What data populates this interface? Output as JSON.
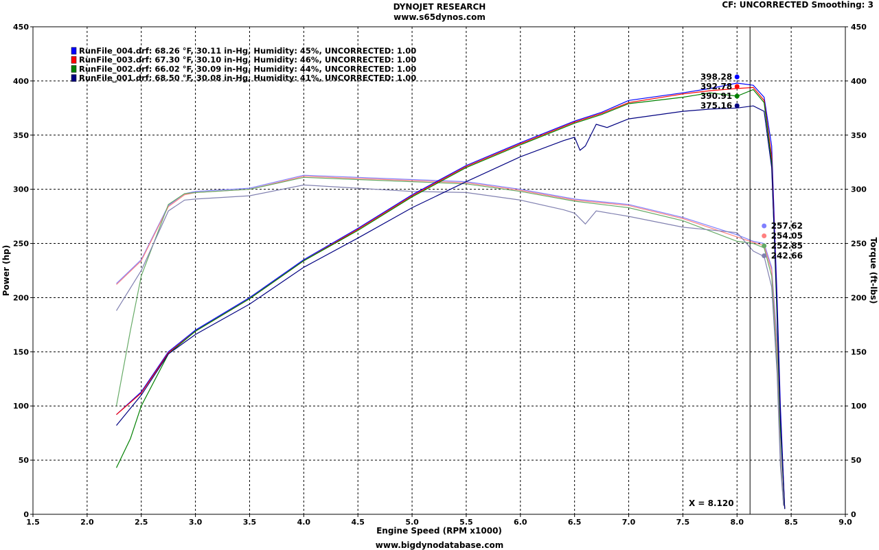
{
  "header": {
    "title": "DYNOJET RESEARCH",
    "subtitle": "www.s65dynos.com",
    "cf_info": "CF: UNCORRECTED  Smoothing: 3"
  },
  "footer": {
    "text": "www.bigdynodatabase.com"
  },
  "cursor_label": "X = 8.120",
  "chart_data": {
    "type": "line",
    "xlabel": "Engine Speed (RPM x1000)",
    "ylabel": "Power (hp)",
    "y2label": "Torque (ft-lbs)",
    "xlim": [
      1.5,
      9.0
    ],
    "ylim": [
      0,
      450
    ],
    "y2lim": [
      0,
      450
    ],
    "xticks": [
      1.5,
      2.0,
      2.5,
      3.0,
      3.5,
      4.0,
      4.5,
      5.0,
      5.5,
      6.0,
      6.5,
      7.0,
      7.5,
      8.0,
      8.5,
      9.0
    ],
    "yticks": [
      0,
      50,
      100,
      150,
      200,
      250,
      300,
      350,
      400,
      450
    ],
    "grid": true,
    "legend_position": "top-left",
    "cursor_x": 8.12,
    "series": [
      {
        "name": "RunFile_004.drf: 68.26 °F, 30.11 in-Hg, Humidity: 45%, UNCORRECTED: 1.00",
        "color": "#0000ff",
        "torque_color": "#8080ff",
        "power_marker": {
          "x": 8.0,
          "label": "398.28"
        },
        "torque_marker": {
          "x": 8.25,
          "label": "257.62"
        },
        "power": [
          [
            2.27,
            92
          ],
          [
            2.5,
            113
          ],
          [
            2.75,
            150
          ],
          [
            3.0,
            170
          ],
          [
            3.5,
            200
          ],
          [
            4.0,
            235
          ],
          [
            4.5,
            264
          ],
          [
            5.0,
            295
          ],
          [
            5.5,
            322
          ],
          [
            6.0,
            343
          ],
          [
            6.5,
            363
          ],
          [
            6.75,
            371
          ],
          [
            7.0,
            382
          ],
          [
            7.5,
            389
          ],
          [
            7.75,
            393
          ],
          [
            8.0,
            398
          ],
          [
            8.15,
            396
          ],
          [
            8.25,
            385
          ],
          [
            8.32,
            340
          ],
          [
            8.37,
            200
          ],
          [
            8.4,
            100
          ],
          [
            8.44,
            5
          ]
        ],
        "torque": [
          [
            2.27,
            213
          ],
          [
            2.5,
            235
          ],
          [
            2.75,
            285
          ],
          [
            2.9,
            296
          ],
          [
            3.0,
            298
          ],
          [
            3.5,
            301
          ],
          [
            4.0,
            313
          ],
          [
            4.5,
            311
          ],
          [
            5.0,
            309
          ],
          [
            5.5,
            307
          ],
          [
            6.0,
            300
          ],
          [
            6.5,
            291
          ],
          [
            7.0,
            286
          ],
          [
            7.5,
            274
          ],
          [
            8.0,
            258
          ],
          [
            8.15,
            252
          ],
          [
            8.25,
            250
          ],
          [
            8.32,
            228
          ],
          [
            8.37,
            160
          ],
          [
            8.4,
            60
          ],
          [
            8.43,
            8
          ]
        ]
      },
      {
        "name": "RunFile_003.drf: 67.30 °F, 30.10 in-Hg, Humidity: 46%, UNCORRECTED: 1.00",
        "color": "#ff0000",
        "torque_color": "#ff8080",
        "power_marker": {
          "x": 8.0,
          "label": "392.78"
        },
        "torque_marker": {
          "x": 8.25,
          "label": "254.05"
        },
        "power": [
          [
            2.27,
            92
          ],
          [
            2.5,
            112
          ],
          [
            2.75,
            149
          ],
          [
            3.0,
            169
          ],
          [
            3.5,
            199
          ],
          [
            4.0,
            234
          ],
          [
            4.5,
            263
          ],
          [
            5.0,
            294
          ],
          [
            5.5,
            321
          ],
          [
            6.0,
            342
          ],
          [
            6.5,
            362
          ],
          [
            6.75,
            370
          ],
          [
            7.0,
            380
          ],
          [
            7.5,
            388
          ],
          [
            7.75,
            391
          ],
          [
            8.0,
            393
          ],
          [
            8.15,
            394
          ],
          [
            8.25,
            382
          ],
          [
            8.32,
            330
          ],
          [
            8.37,
            190
          ],
          [
            8.4,
            90
          ],
          [
            8.44,
            5
          ]
        ],
        "torque": [
          [
            2.27,
            212
          ],
          [
            2.5,
            234
          ],
          [
            2.75,
            284
          ],
          [
            2.9,
            295
          ],
          [
            3.0,
            297
          ],
          [
            3.5,
            300
          ],
          [
            4.0,
            312
          ],
          [
            4.5,
            310
          ],
          [
            5.0,
            308
          ],
          [
            5.5,
            306
          ],
          [
            6.0,
            299
          ],
          [
            6.5,
            290
          ],
          [
            7.0,
            285
          ],
          [
            7.5,
            273
          ],
          [
            8.0,
            256
          ],
          [
            8.15,
            251
          ],
          [
            8.25,
            248
          ],
          [
            8.32,
            225
          ],
          [
            8.37,
            150
          ],
          [
            8.4,
            55
          ],
          [
            8.43,
            8
          ]
        ]
      },
      {
        "name": "RunFile_002.drf: 66.02 °F, 30.09 in-Hg, Humidity: 44%, UNCORRECTED: 1.00",
        "color": "#008000",
        "torque_color": "#66aa66",
        "power_marker": {
          "x": 8.0,
          "label": "390.91"
        },
        "torque_marker": {
          "x": 8.25,
          "label": "252.85"
        },
        "power": [
          [
            2.27,
            43
          ],
          [
            2.4,
            70
          ],
          [
            2.5,
            100
          ],
          [
            2.75,
            148
          ],
          [
            3.0,
            169
          ],
          [
            3.5,
            199
          ],
          [
            4.0,
            234
          ],
          [
            4.5,
            262
          ],
          [
            5.0,
            293
          ],
          [
            5.5,
            320
          ],
          [
            6.0,
            341
          ],
          [
            6.5,
            361
          ],
          [
            6.75,
            369
          ],
          [
            7.0,
            379
          ],
          [
            7.5,
            385
          ],
          [
            7.75,
            389
          ],
          [
            8.0,
            386
          ],
          [
            8.15,
            392
          ],
          [
            8.25,
            380
          ],
          [
            8.32,
            325
          ],
          [
            8.37,
            180
          ],
          [
            8.4,
            80
          ],
          [
            8.44,
            5
          ]
        ],
        "torque": [
          [
            2.27,
            100
          ],
          [
            2.4,
            170
          ],
          [
            2.5,
            220
          ],
          [
            2.75,
            286
          ],
          [
            2.9,
            296
          ],
          [
            3.0,
            297
          ],
          [
            3.5,
            300
          ],
          [
            4.0,
            311
          ],
          [
            4.5,
            309
          ],
          [
            5.0,
            307
          ],
          [
            5.5,
            305
          ],
          [
            6.0,
            298
          ],
          [
            6.5,
            289
          ],
          [
            7.0,
            283
          ],
          [
            7.5,
            271
          ],
          [
            8.0,
            252
          ],
          [
            8.15,
            250
          ],
          [
            8.25,
            246
          ],
          [
            8.32,
            220
          ],
          [
            8.37,
            140
          ],
          [
            8.4,
            50
          ],
          [
            8.43,
            8
          ]
        ]
      },
      {
        "name": "RunFile_001.drf: 68.50 °F, 30.08 in-Hg, Humidity: 41%, UNCORRECTED: 1.00",
        "color": "#000080",
        "torque_color": "#8080b0",
        "power_marker": {
          "x": 8.0,
          "label": "375.16"
        },
        "torque_marker": {
          "x": 8.25,
          "label": "242.66"
        },
        "power": [
          [
            2.27,
            82
          ],
          [
            2.5,
            110
          ],
          [
            2.75,
            148
          ],
          [
            3.0,
            166
          ],
          [
            3.5,
            194
          ],
          [
            4.0,
            228
          ],
          [
            4.5,
            255
          ],
          [
            5.0,
            283
          ],
          [
            5.5,
            307
          ],
          [
            6.0,
            330
          ],
          [
            6.4,
            345
          ],
          [
            6.5,
            348
          ],
          [
            6.55,
            336
          ],
          [
            6.6,
            340
          ],
          [
            6.7,
            360
          ],
          [
            6.8,
            357
          ],
          [
            7.0,
            365
          ],
          [
            7.5,
            372
          ],
          [
            7.75,
            374
          ],
          [
            8.0,
            375
          ],
          [
            8.15,
            377
          ],
          [
            8.25,
            372
          ],
          [
            8.32,
            320
          ],
          [
            8.37,
            190
          ],
          [
            8.4,
            90
          ],
          [
            8.44,
            5
          ]
        ],
        "torque": [
          [
            2.27,
            188
          ],
          [
            2.5,
            225
          ],
          [
            2.75,
            280
          ],
          [
            2.9,
            290
          ],
          [
            3.0,
            291
          ],
          [
            3.5,
            294
          ],
          [
            4.0,
            304
          ],
          [
            4.5,
            301
          ],
          [
            5.0,
            298
          ],
          [
            5.5,
            297
          ],
          [
            6.0,
            290
          ],
          [
            6.4,
            281
          ],
          [
            6.5,
            278
          ],
          [
            6.6,
            268
          ],
          [
            6.7,
            280
          ],
          [
            7.0,
            275
          ],
          [
            7.5,
            265
          ],
          [
            8.0,
            260
          ],
          [
            8.15,
            243
          ],
          [
            8.25,
            238
          ],
          [
            8.32,
            210
          ],
          [
            8.37,
            130
          ],
          [
            8.4,
            45
          ],
          [
            8.43,
            8
          ]
        ]
      }
    ]
  }
}
